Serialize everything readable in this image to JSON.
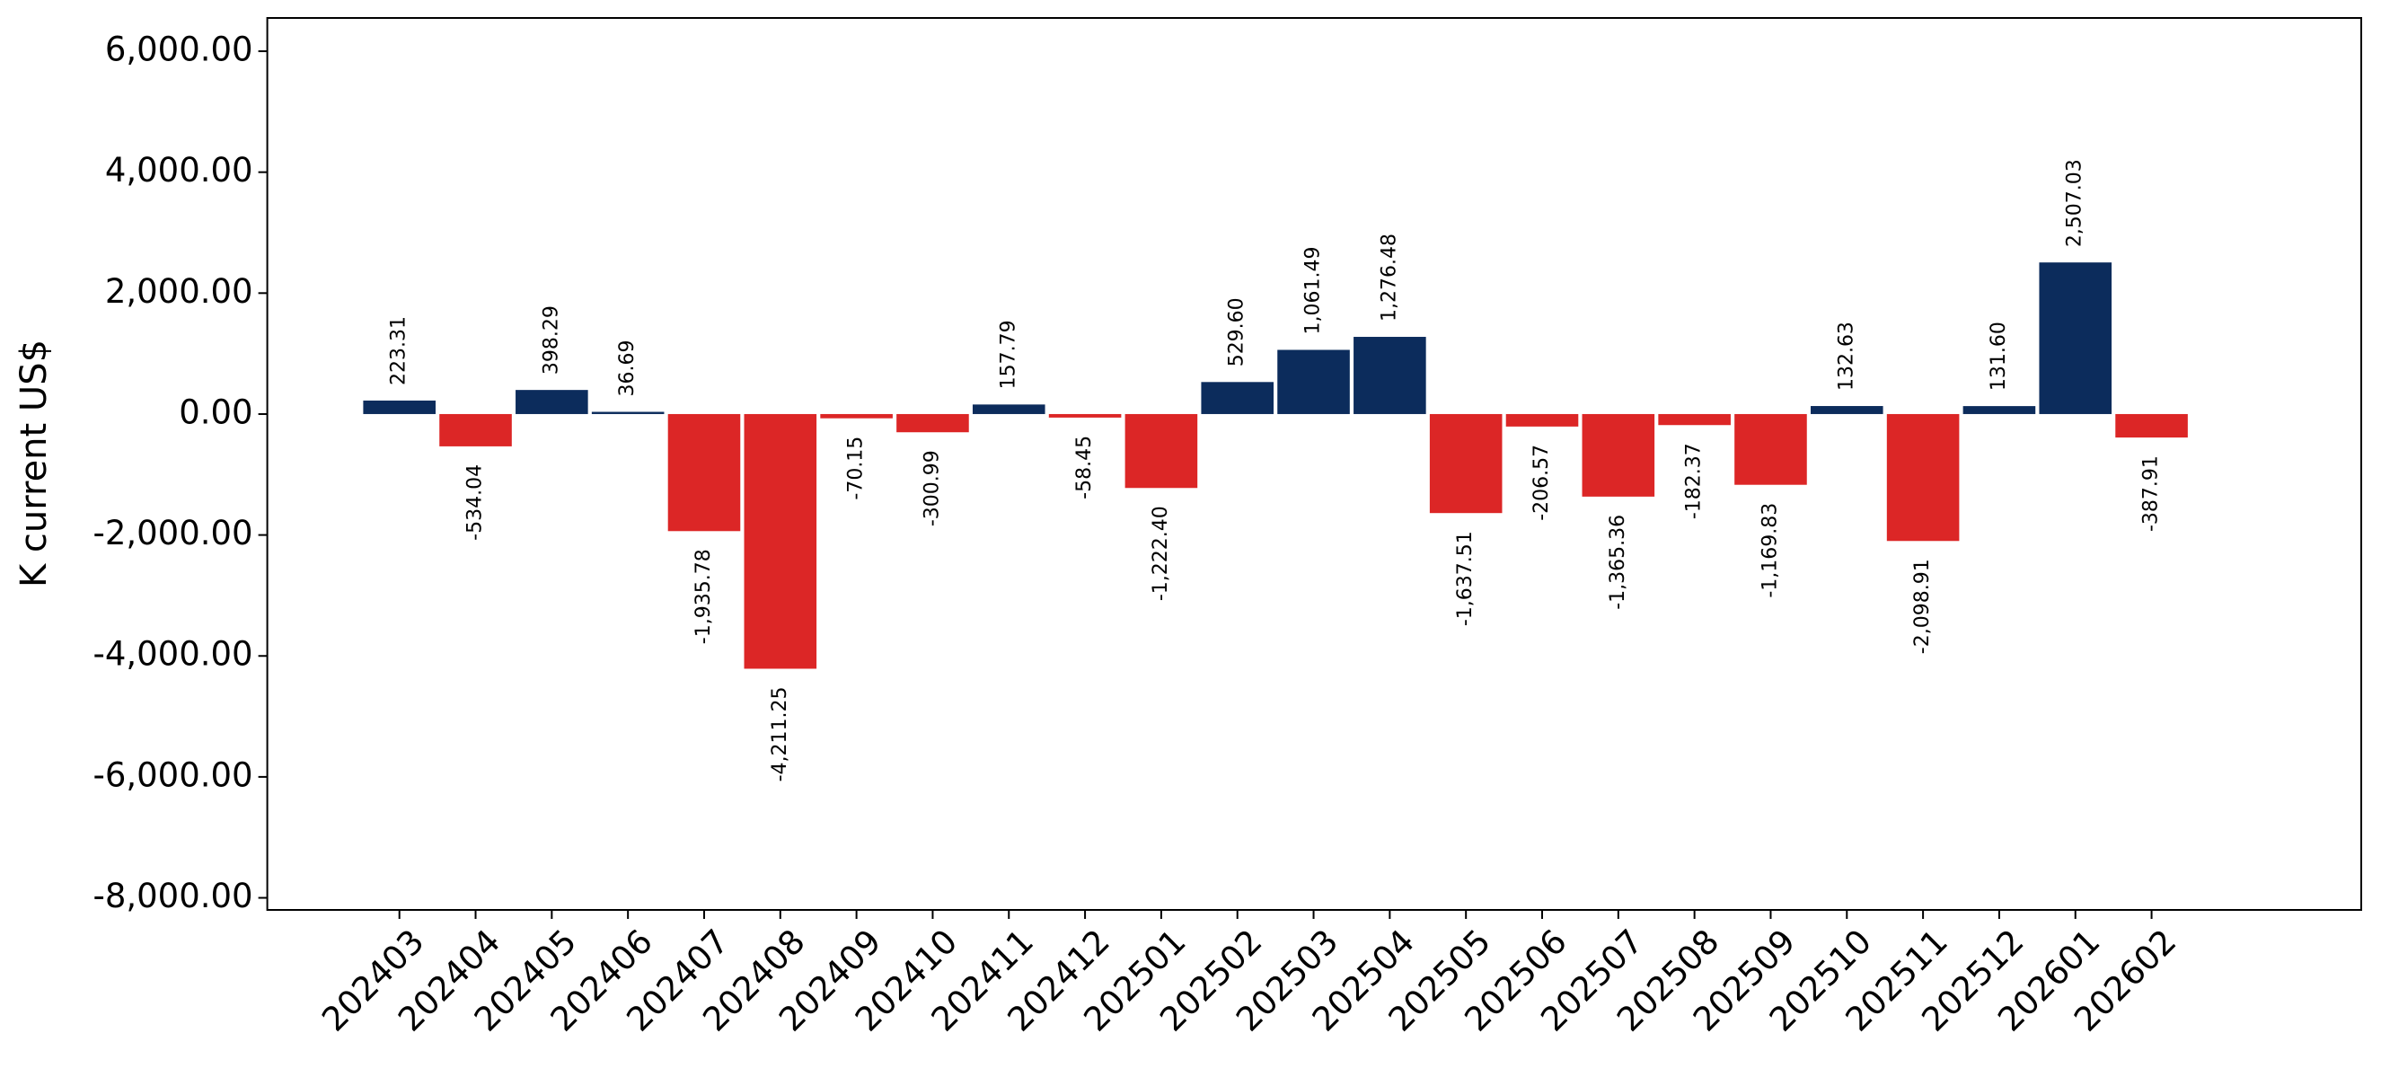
{
  "chart_data": {
    "type": "bar",
    "ylabel": "K current US$",
    "categories": [
      "202403",
      "202404",
      "202405",
      "202406",
      "202407",
      "202408",
      "202409",
      "202410",
      "202411",
      "202412",
      "202501",
      "202502",
      "202503",
      "202504",
      "202505",
      "202506",
      "202507",
      "202508",
      "202509",
      "202510",
      "202511",
      "202512",
      "202601",
      "202602"
    ],
    "values": [
      223.31,
      -534.04,
      398.29,
      36.69,
      -1935.78,
      -4211.25,
      -70.15,
      -300.99,
      157.79,
      -58.45,
      -1222.4,
      529.6,
      1061.49,
      1276.48,
      -1637.51,
      -206.57,
      -1365.36,
      -182.37,
      -1169.83,
      132.63,
      -2098.91,
      131.6,
      2507.03,
      -387.91
    ],
    "value_labels": [
      "223.31",
      "-534.04",
      "398.29",
      "36.69",
      "-1,935.78",
      "-4,211.25",
      "-70.15",
      "-300.99",
      "157.79",
      "-58.45",
      "-1,222.40",
      "529.60",
      "1,061.49",
      "1,276.48",
      "-1,637.51",
      "-206.57",
      "-1,365.36",
      "-182.37",
      "-1,169.83",
      "132.63",
      "-2,098.91",
      "131.60",
      "2,507.03",
      "-387.91"
    ],
    "color_positive": "#0c2c5c",
    "color_negative": "#dc2626",
    "ylim": [
      -8200,
      6550
    ],
    "yticks": [
      {
        "value": -8000,
        "label": "-8,000.00"
      },
      {
        "value": -6000,
        "label": "-6,000.00"
      },
      {
        "value": -4000,
        "label": "-4,000.00"
      },
      {
        "value": -2000,
        "label": "-2,000.00"
      },
      {
        "value": 0,
        "label": "0.00"
      },
      {
        "value": 2000,
        "label": "2,000.00"
      },
      {
        "value": 4000,
        "label": "4,000.00"
      },
      {
        "value": 6000,
        "label": "6,000.00"
      }
    ],
    "grid": false
  }
}
